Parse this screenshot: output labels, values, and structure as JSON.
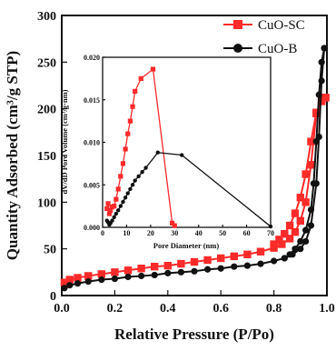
{
  "chart_data": [
    {
      "type": "line",
      "title": "",
      "xlabel": "Relative Pressure (P/Po)",
      "ylabel": "Quantity Adsorbed (cm³/g STP)",
      "xlim": [
        0.0,
        1.0
      ],
      "ylim": [
        0,
        300
      ],
      "xticks": [
        "0.0",
        "0.2",
        "0.4",
        "0.6",
        "0.8",
        "1.0"
      ],
      "yticks": [
        "0",
        "50",
        "100",
        "150",
        "200",
        "250",
        "300"
      ],
      "legend_position": "top-right",
      "series": [
        {
          "name": "CuO-SC",
          "color": "#ff2a2a",
          "marker": "square",
          "adsorption": {
            "x": [
              0.01,
              0.03,
              0.06,
              0.1,
              0.15,
              0.2,
              0.25,
              0.3,
              0.35,
              0.4,
              0.45,
              0.5,
              0.55,
              0.6,
              0.65,
              0.7,
              0.75,
              0.8,
              0.83,
              0.86,
              0.88,
              0.9,
              0.92,
              0.94,
              0.96,
              0.98,
              0.995
            ],
            "y": [
              14,
              17,
              19,
              21,
              23,
              25,
              27,
              29,
              31,
              32,
              34,
              36,
              38,
              40,
              42,
              44,
              47,
              51,
              55,
              61,
              68,
              80,
              100,
              140,
              195,
              210,
              212
            ]
          },
          "desorption": {
            "x": [
              0.995,
              0.98,
              0.96,
              0.94,
              0.92,
              0.9,
              0.88,
              0.86,
              0.84,
              0.82,
              0.8
            ],
            "y": [
              212,
              208,
              196,
              165,
              130,
              105,
              88,
              75,
              66,
              60,
              55
            ]
          }
        },
        {
          "name": "CuO-B",
          "color": "#111111",
          "marker": "circle",
          "adsorption": {
            "x": [
              0.01,
              0.03,
              0.06,
              0.1,
              0.15,
              0.2,
              0.25,
              0.3,
              0.35,
              0.4,
              0.45,
              0.5,
              0.55,
              0.6,
              0.65,
              0.7,
              0.75,
              0.8,
              0.84,
              0.87,
              0.9,
              0.92,
              0.94,
              0.96,
              0.97,
              0.98,
              0.99
            ],
            "y": [
              8,
              11,
              13,
              15,
              17,
              18,
              20,
              21,
              22,
              24,
              25,
              26,
              28,
              29,
              31,
              32,
              34,
              37,
              40,
              44,
              50,
              58,
              75,
              120,
              170,
              230,
              265
            ]
          },
          "desorption": {
            "x": [
              0.99,
              0.98,
              0.97,
              0.96,
              0.95,
              0.94,
              0.92,
              0.9,
              0.88,
              0.86,
              0.84
            ],
            "y": [
              265,
              250,
              215,
              165,
              120,
              92,
              70,
              58,
              50,
              44,
              40
            ]
          }
        }
      ]
    },
    {
      "type": "line",
      "title": "",
      "xlabel": "Pore Diameter (nm)",
      "ylabel": "dV/dD Pore Volume (cm³/g·nm)",
      "xlim": [
        0,
        70
      ],
      "ylim": [
        0,
        0.02
      ],
      "xticks": [
        "0",
        "10",
        "20",
        "30",
        "40",
        "50",
        "60",
        "70"
      ],
      "yticks": [
        "0.000",
        "0.005",
        "0.010",
        "0.015",
        "0.020"
      ],
      "series": [
        {
          "name": "CuO-SC",
          "color": "#ff2a2a",
          "marker": "square",
          "x": [
            1.8,
            2.3,
            2.8,
            3.3,
            4,
            4.8,
            5.6,
            6.5,
            7.5,
            8.5,
            9.5,
            10.5,
            11.5,
            12.5,
            13.5,
            16,
            21,
            29,
            30
          ],
          "y": [
            0.0022,
            0.0028,
            0.0016,
            0.002,
            0.0024,
            0.0025,
            0.0033,
            0.0045,
            0.006,
            0.0075,
            0.0092,
            0.011,
            0.0125,
            0.0142,
            0.016,
            0.0175,
            0.0186,
            0.0005,
            0.0002
          ]
        },
        {
          "name": "CuO-B",
          "color": "#111111",
          "marker": "circle",
          "x": [
            1.8,
            2.3,
            2.8,
            3.3,
            4,
            4.8,
            5.6,
            6.5,
            7.5,
            8.5,
            9.5,
            10.5,
            11.5,
            12.5,
            13.5,
            15,
            16.5,
            18,
            23,
            33,
            70
          ],
          "y": [
            0.0008,
            0.0006,
            0.0003,
            0.0005,
            0.0008,
            0.0012,
            0.0016,
            0.002,
            0.0025,
            0.003,
            0.0035,
            0.004,
            0.0045,
            0.005,
            0.0055,
            0.006,
            0.0065,
            0.007,
            0.0088,
            0.0085,
            0.0001
          ]
        }
      ]
    }
  ]
}
